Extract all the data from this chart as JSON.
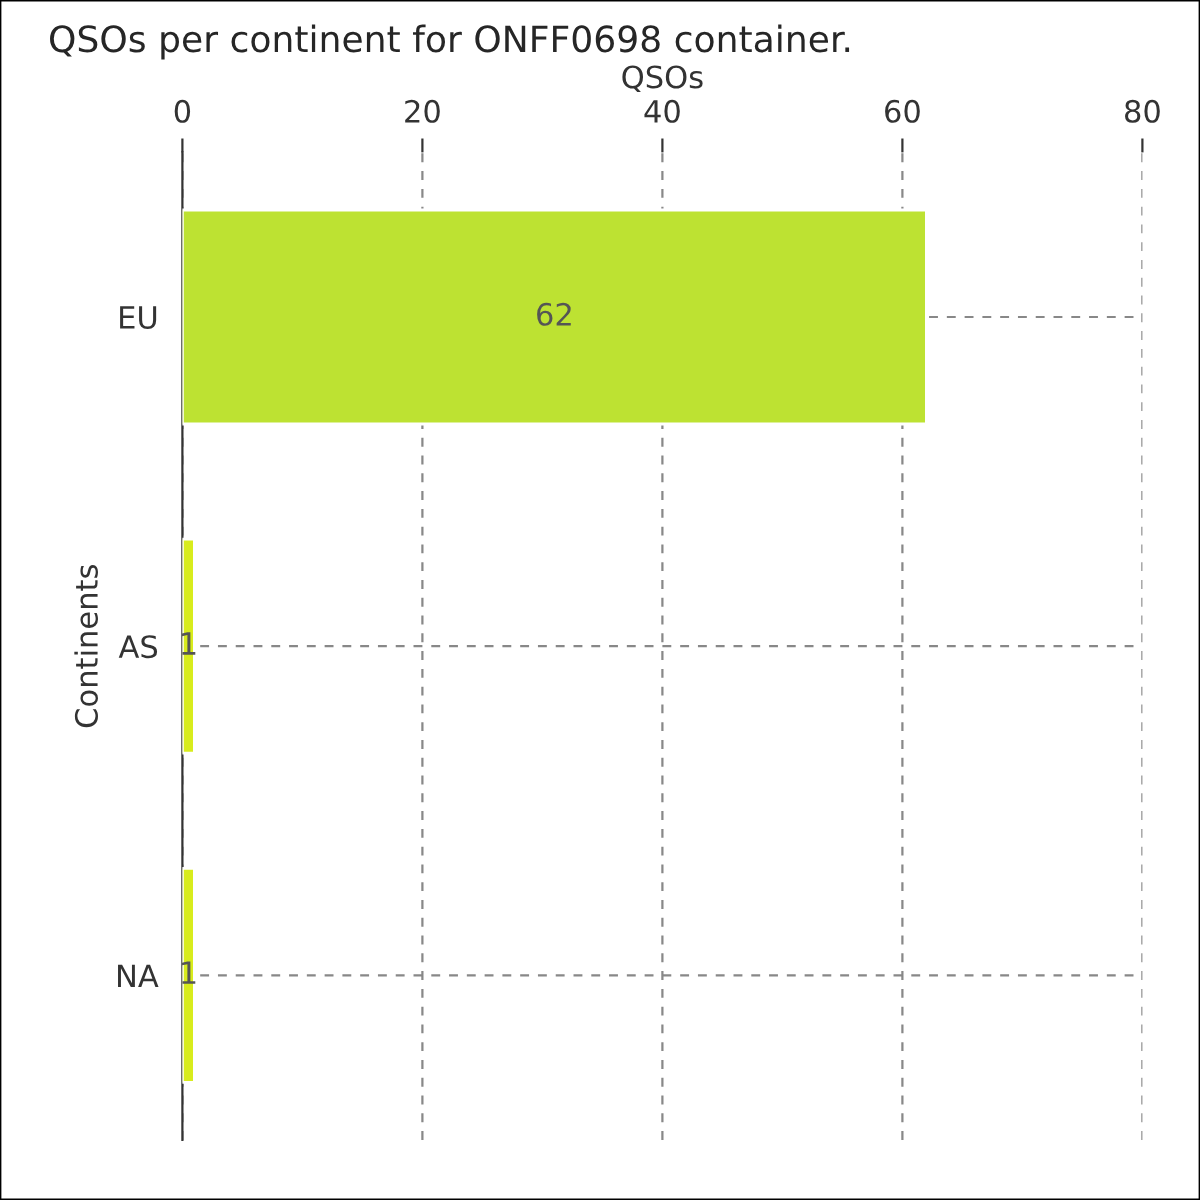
{
  "chart_data": {
    "type": "bar",
    "orientation": "horizontal",
    "title": "QSOs per continent for ONFF0698 container.",
    "xlabel": "QSOs",
    "ylabel": "Continents",
    "categories": [
      "EU",
      "AS",
      "NA"
    ],
    "values": [
      62,
      1,
      1
    ],
    "colors": [
      "#bde232",
      "#d8ec1c",
      "#d8ec1c"
    ],
    "xlim": [
      0,
      80
    ],
    "xticks": [
      0,
      20,
      40,
      60,
      80
    ],
    "grid": true,
    "data_labels": true
  }
}
